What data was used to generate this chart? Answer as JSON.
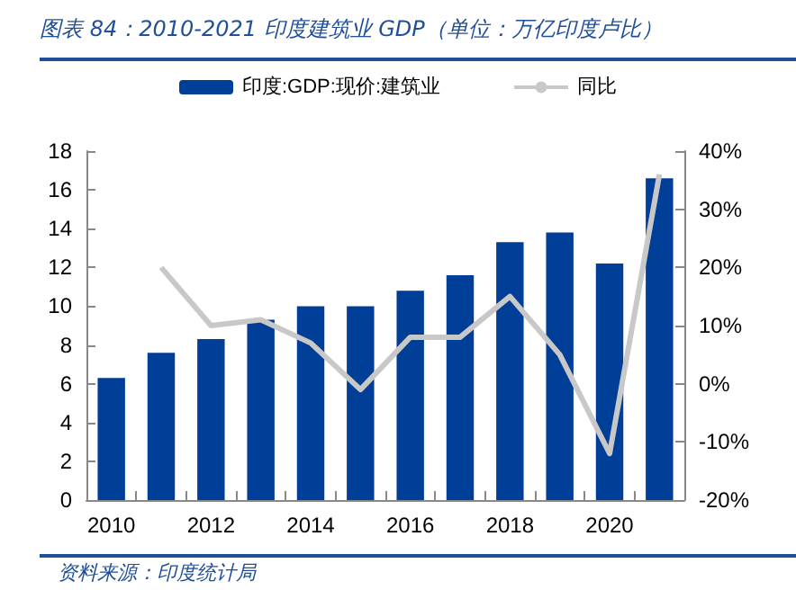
{
  "chart_data": {
    "type": "bar",
    "title": "图表 84：2010-2021 印度建筑业 GDP（单位：万亿印度卢比）",
    "annotations": [
      "资料来源：印度统计局"
    ],
    "categories": [
      "2010",
      null,
      "2012",
      null,
      "2014",
      null,
      "2016",
      null,
      "2018",
      null,
      "2020",
      null
    ],
    "series": [
      {
        "name": "印度:GDP:现价:建筑业",
        "color": "#003f97",
        "values": [
          6.3,
          7.6,
          8.3,
          9.3,
          10.0,
          10.0,
          10.8,
          11.6,
          13.3,
          13.8,
          12.2,
          16.6
        ]
      },
      {
        "name": "同比",
        "type": "line",
        "axis": "y2",
        "color": "#c8c8c8",
        "marker": "none",
        "values": [
          null,
          20,
          10,
          11,
          7,
          -1,
          8,
          8,
          15,
          5,
          -12,
          36
        ]
      }
    ],
    "ylim": [
      0,
      18
    ],
    "yticks": [
      0,
      2,
      4,
      6,
      8,
      10,
      12,
      14,
      16,
      18
    ],
    "y2lim": [
      -20,
      40
    ],
    "y2ticks": [
      {
        "value": -20,
        "label": "-20%"
      },
      {
        "value": -10,
        "label": "-10%"
      },
      {
        "value": 0,
        "label": "0%"
      },
      {
        "value": 10,
        "label": "10%"
      },
      {
        "value": 20,
        "label": "20%"
      },
      {
        "value": 30,
        "label": "30%"
      },
      {
        "value": 40,
        "label": "40%"
      }
    ],
    "grid": false,
    "legend": "top"
  }
}
